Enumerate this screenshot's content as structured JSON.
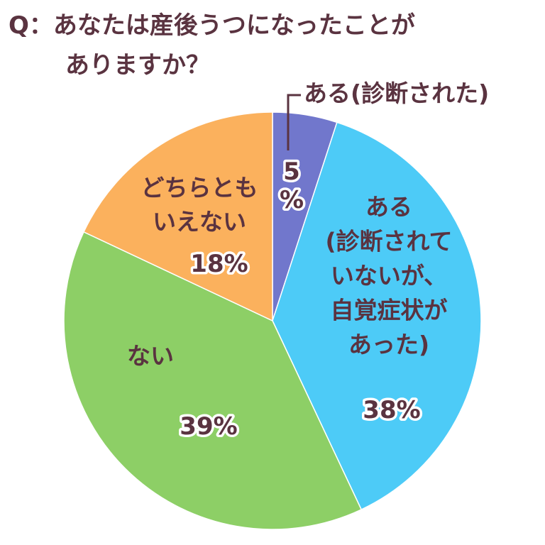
{
  "title": {
    "line1": "Q：あなたは産後うつになったことが",
    "line2": "ありますか？"
  },
  "colors": {
    "text": "#5a3340",
    "slice_outline": "#ffffff"
  },
  "chart_data": {
    "type": "pie",
    "start_angle_deg": 0,
    "direction": "clockwise",
    "unit": "%",
    "slices": [
      {
        "label_lines": [
          "ある(診断された)"
        ],
        "value": 5,
        "value_label_lines": [
          "5",
          "%"
        ],
        "color": "#7177cc"
      },
      {
        "label_lines": [
          "ある",
          "(診断されて",
          "いないが、",
          "自覚症状が",
          "あった)"
        ],
        "value": 38,
        "value_label_lines": [
          "38%"
        ],
        "color": "#4dcbf7"
      },
      {
        "label_lines": [
          "ない"
        ],
        "value": 39,
        "value_label_lines": [
          "39%"
        ],
        "color": "#8dcf66"
      },
      {
        "label_lines": [
          "どちらとも",
          "いえない"
        ],
        "value": 18,
        "value_label_lines": [
          "18%"
        ],
        "color": "#fbb15d"
      }
    ]
  }
}
